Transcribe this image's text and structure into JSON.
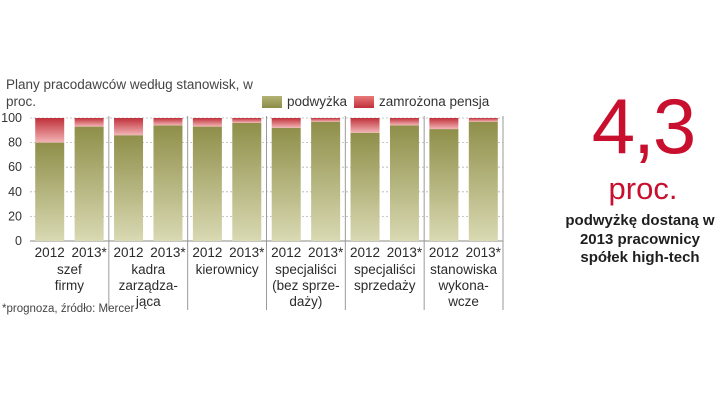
{
  "subtitle": "Plany pracodawców według stanowisk, w proc.",
  "source_note": "*prognoza, źródło: Mercer",
  "highlight": {
    "value": "4,3",
    "unit": "proc.",
    "caption": "podwyżkę dostaną w 2013 pracownicy spółek high-tech"
  },
  "colors": {
    "raise": "#8c8c48",
    "frozen": "#c0303a",
    "accent": "#c8102e"
  },
  "chart_data": {
    "type": "bar",
    "stacked": true,
    "ylim": [
      0,
      100
    ],
    "yticks": [
      0,
      20,
      40,
      60,
      80,
      100
    ],
    "grid": true,
    "legend_position": "top-right",
    "groups": [
      {
        "label": [
          "szef",
          "firmy"
        ],
        "bars": [
          "2012",
          "2013*"
        ]
      },
      {
        "label": [
          "kadra",
          "zarządza-",
          "jąca"
        ],
        "bars": [
          "2012",
          "2013*"
        ]
      },
      {
        "label": [
          "kierownicy"
        ],
        "bars": [
          "2012",
          "2013*"
        ]
      },
      {
        "label": [
          "specjaliści",
          "(bez sprze-",
          "daży)"
        ],
        "bars": [
          "2012",
          "2013*"
        ]
      },
      {
        "label": [
          "specjaliści",
          "sprzedaży"
        ],
        "bars": [
          "2012",
          "2013*"
        ]
      },
      {
        "label": [
          "stanowiska",
          "wykona-",
          "wcze"
        ],
        "bars": [
          "2012",
          "2013*"
        ]
      }
    ],
    "series": [
      {
        "name": "podwyżka",
        "values": [
          80,
          93,
          86,
          94,
          93,
          96,
          92,
          97,
          88,
          94,
          91,
          97
        ]
      },
      {
        "name": "zamrożona pensja",
        "values": [
          20,
          7,
          14,
          6,
          7,
          4,
          8,
          3,
          12,
          6,
          9,
          3
        ]
      }
    ]
  }
}
